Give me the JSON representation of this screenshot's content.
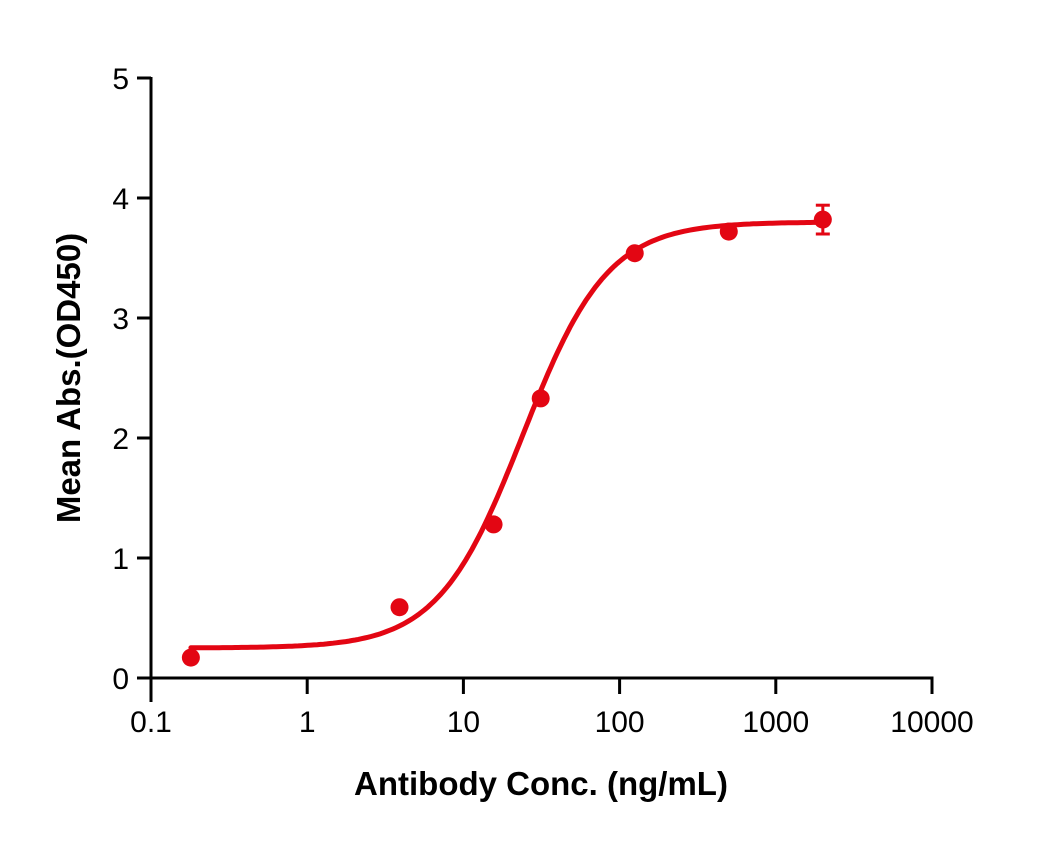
{
  "chart_data": {
    "type": "scatter",
    "title": "",
    "xlabel": "Antibody Conc. (ng/mL)",
    "ylabel": "Mean Abs.(OD450)",
    "xscale": "log",
    "xlim": [
      0.1,
      10000
    ],
    "ylim": [
      0,
      5
    ],
    "x_ticks": [
      0.1,
      1,
      10,
      100,
      1000,
      10000
    ],
    "x_tick_labels": [
      "0.1",
      "1",
      "10",
      "100",
      "1000",
      "10000"
    ],
    "y_ticks": [
      0,
      1,
      2,
      3,
      4,
      5
    ],
    "y_tick_labels": [
      "0",
      "1",
      "2",
      "3",
      "4",
      "5"
    ],
    "grid": false,
    "legend": null,
    "series": [
      {
        "name": "Mean Abs.",
        "color": "#e30613",
        "x": [
          0.18,
          3.9,
          15.6,
          31.25,
          125,
          500,
          2000
        ],
        "y": [
          0.17,
          0.59,
          1.28,
          2.33,
          3.54,
          3.72,
          3.82
        ],
        "error": [
          0,
          0,
          0,
          0,
          0,
          0,
          0.12
        ]
      }
    ],
    "fit": {
      "model": "4PL",
      "bottom": 0.25,
      "top": 3.8,
      "ec50": 24,
      "hill": 1.6,
      "x_range": [
        0.18,
        2000
      ],
      "color": "#e30613"
    }
  }
}
